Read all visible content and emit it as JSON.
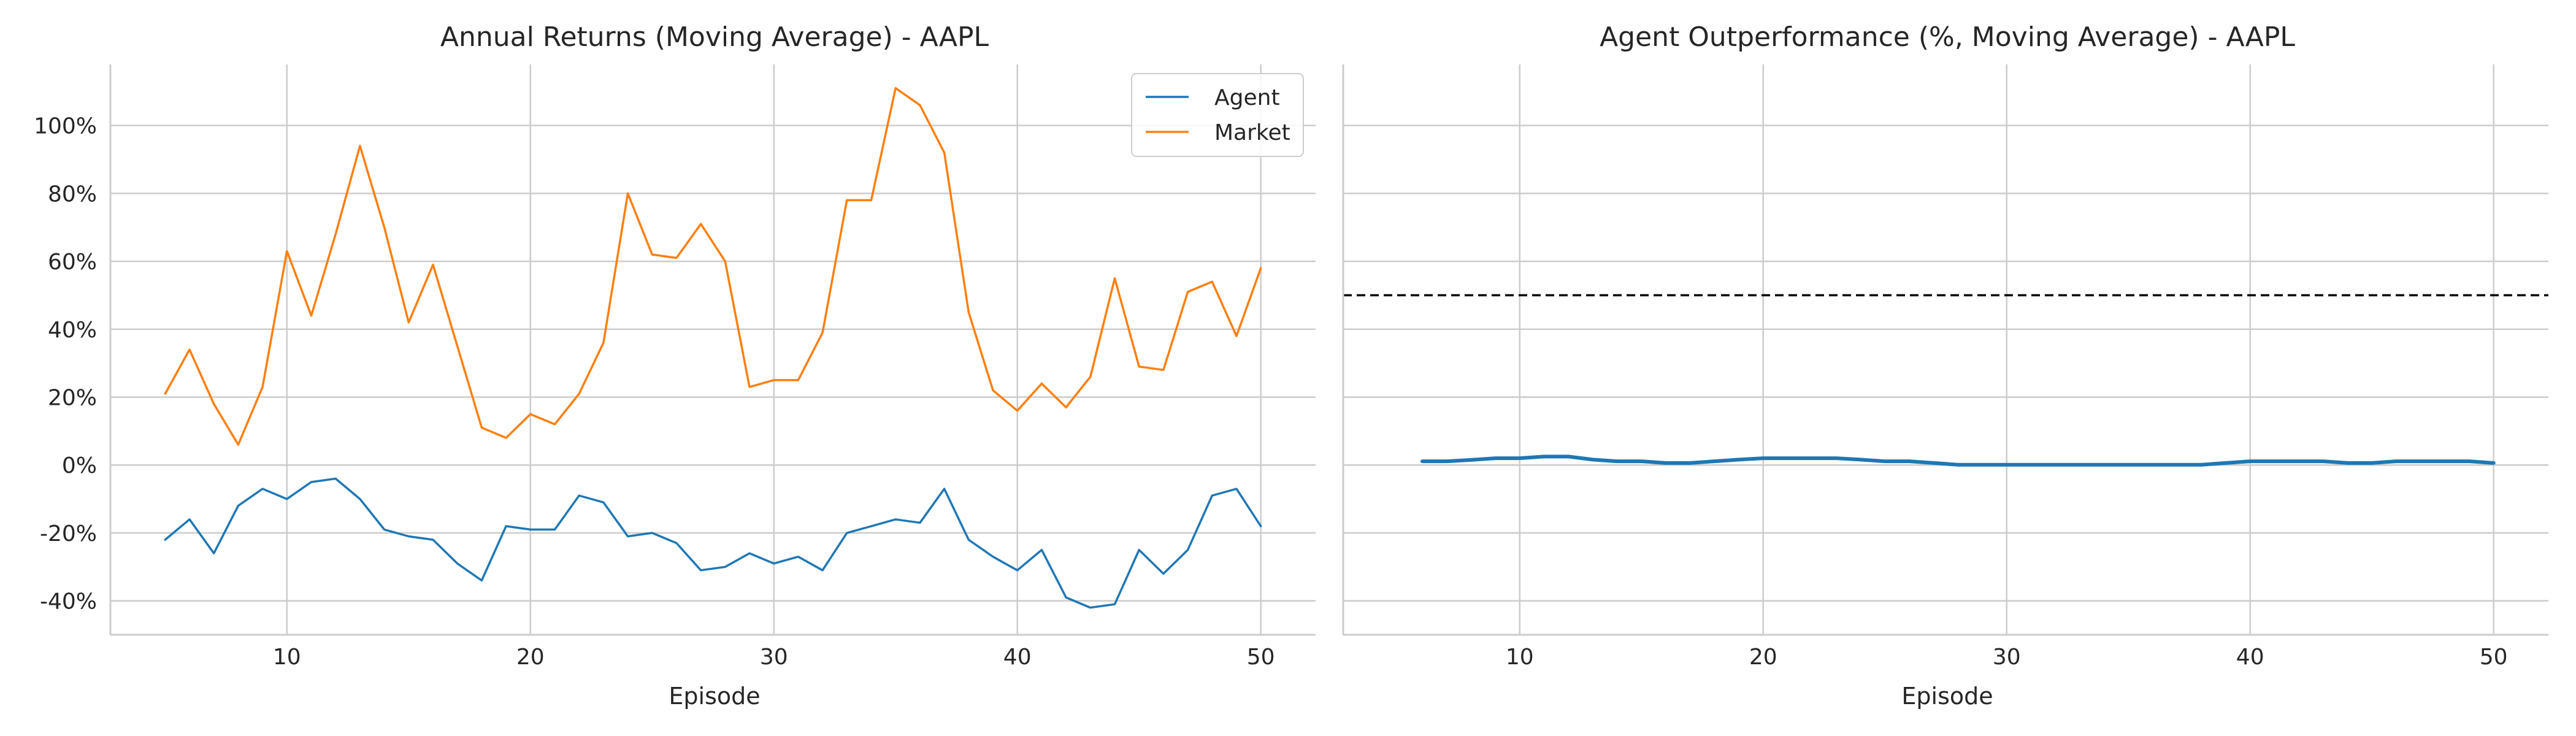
{
  "chart_data": [
    {
      "type": "line",
      "title": "Annual Returns (Moving Average) - AAPL",
      "xlabel": "Episode",
      "ylabel": "",
      "xlim": [
        2.75,
        52.25
      ],
      "ylim": [
        -0.5,
        1.18
      ],
      "xticks": [
        10,
        20,
        30,
        40,
        50
      ],
      "yticks": [
        -0.4,
        -0.2,
        0.0,
        0.2,
        0.4,
        0.6,
        0.8,
        1.0
      ],
      "ytick_labels": [
        "-40%",
        "-20%",
        "0%",
        "20%",
        "40%",
        "60%",
        "80%",
        "100%"
      ],
      "grid": true,
      "legend_position": "top-right",
      "x": [
        5,
        6,
        7,
        8,
        9,
        10,
        11,
        12,
        13,
        14,
        15,
        16,
        17,
        18,
        19,
        20,
        21,
        22,
        23,
        24,
        25,
        26,
        27,
        28,
        29,
        30,
        31,
        32,
        33,
        34,
        35,
        36,
        37,
        38,
        39,
        40,
        41,
        42,
        43,
        44,
        45,
        46,
        47,
        48,
        49,
        50
      ],
      "series": [
        {
          "name": "Agent",
          "color": "#1f77b4",
          "values": [
            -0.22,
            -0.16,
            -0.26,
            -0.12,
            -0.07,
            -0.1,
            -0.05,
            -0.04,
            -0.1,
            -0.19,
            -0.21,
            -0.22,
            -0.29,
            -0.34,
            -0.18,
            -0.19,
            -0.19,
            -0.09,
            -0.11,
            -0.21,
            -0.2,
            -0.23,
            -0.31,
            -0.3,
            -0.26,
            -0.29,
            -0.27,
            -0.31,
            -0.2,
            -0.18,
            -0.16,
            -0.17,
            -0.07,
            -0.22,
            -0.27,
            -0.31,
            -0.25,
            -0.39,
            -0.42,
            -0.41,
            -0.25,
            -0.32,
            -0.25,
            -0.09,
            -0.07,
            -0.18
          ]
        },
        {
          "name": "Market",
          "color": "#ff7f0e",
          "values": [
            0.21,
            0.34,
            0.18,
            0.06,
            0.23,
            0.63,
            0.44,
            0.68,
            0.94,
            0.7,
            0.42,
            0.59,
            0.35,
            0.11,
            0.08,
            0.15,
            0.12,
            0.21,
            0.36,
            0.8,
            0.62,
            0.61,
            0.71,
            0.6,
            0.23,
            0.25,
            0.25,
            0.39,
            0.78,
            0.78,
            1.11,
            1.06,
            0.92,
            0.45,
            0.22,
            0.16,
            0.24,
            0.17,
            0.26,
            0.55,
            0.29,
            0.28,
            0.51,
            0.54,
            0.38,
            0.58
          ]
        }
      ]
    },
    {
      "type": "line",
      "title": "Agent Outperformance (%, Moving Average) - AAPL",
      "xlabel": "Episode",
      "ylabel": "",
      "xlim": [
        2.75,
        52.25
      ],
      "ylim": [
        -0.5,
        1.18
      ],
      "xticks": [
        10,
        20,
        30,
        40,
        50
      ],
      "grid": true,
      "reference_line": {
        "y": 0.5,
        "style": "dashed",
        "color": "#000000"
      },
      "x": [
        6,
        7,
        8,
        9,
        10,
        11,
        12,
        13,
        14,
        15,
        16,
        17,
        18,
        19,
        20,
        21,
        22,
        23,
        24,
        25,
        26,
        27,
        28,
        29,
        30,
        31,
        32,
        33,
        34,
        35,
        36,
        37,
        38,
        39,
        40,
        41,
        42,
        43,
        44,
        45,
        46,
        47,
        48,
        49,
        50
      ],
      "series": [
        {
          "color": "#1f77b4",
          "values": [
            0.011,
            0.011,
            0.015,
            0.02,
            0.02,
            0.025,
            0.025,
            0.016,
            0.011,
            0.011,
            0.006,
            0.006,
            0.011,
            0.016,
            0.02,
            0.02,
            0.02,
            0.02,
            0.016,
            0.011,
            0.011,
            0.006,
            0.001,
            0.001,
            0.001,
            0.001,
            0.001,
            0.001,
            0.001,
            0.001,
            0.001,
            0.001,
            0.001,
            0.006,
            0.011,
            0.011,
            0.011,
            0.011,
            0.006,
            0.006,
            0.011,
            0.011,
            0.011,
            0.011,
            0.006
          ]
        }
      ]
    }
  ]
}
